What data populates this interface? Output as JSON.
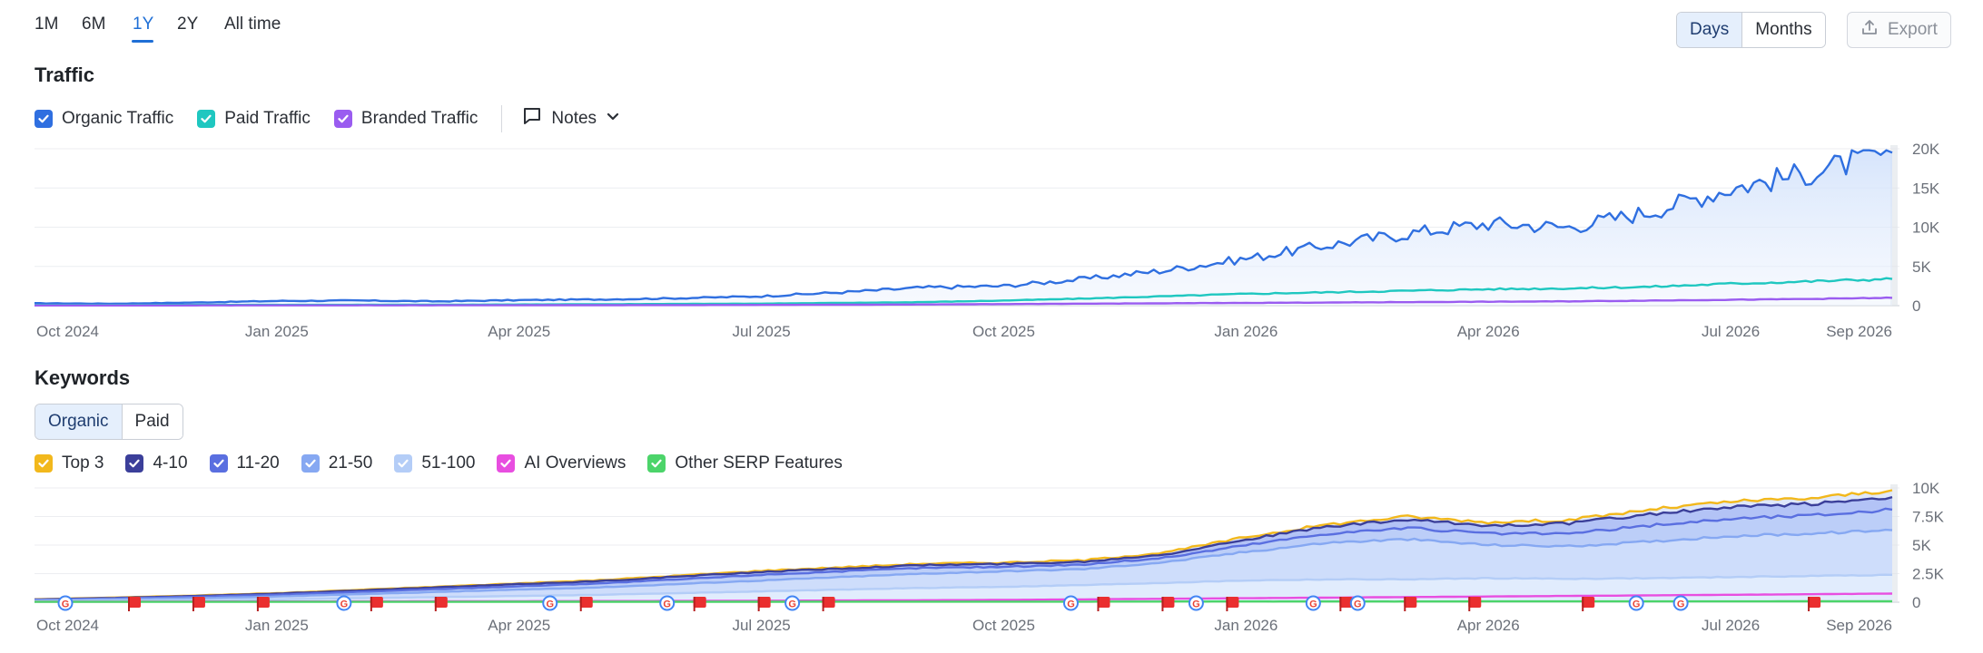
{
  "period_tabs": [
    {
      "label": "1M",
      "active": false
    },
    {
      "label": "6M",
      "active": false
    },
    {
      "label": "1Y",
      "active": true
    },
    {
      "label": "2Y",
      "active": false
    },
    {
      "label": "All time",
      "active": false
    }
  ],
  "granularity": {
    "days_label": "Days",
    "months_label": "Months",
    "selected": "Days"
  },
  "export": {
    "label": "Export",
    "icon": "upload-icon",
    "enabled": false
  },
  "traffic": {
    "title": "Traffic",
    "legend": [
      {
        "label": "Organic Traffic",
        "color": "#2f6fe0",
        "checked": true
      },
      {
        "label": "Paid Traffic",
        "color": "#1fc7c0",
        "checked": true
      },
      {
        "label": "Branded Traffic",
        "color": "#9a5cf0",
        "checked": true
      }
    ],
    "notes_label": "Notes",
    "notes_icon": "comment-icon"
  },
  "keywords": {
    "title": "Keywords",
    "tabs": [
      {
        "label": "Organic",
        "active": true
      },
      {
        "label": "Paid",
        "active": false
      }
    ],
    "legend": [
      {
        "label": "Top 3",
        "color": "#f2b81c"
      },
      {
        "label": "4-10",
        "color": "#3b3f9a"
      },
      {
        "label": "11-20",
        "color": "#5a6fe0"
      },
      {
        "label": "21-50",
        "color": "#86a8f2"
      },
      {
        "label": "51-100",
        "color": "#b4cdf7"
      },
      {
        "label": "AI Overviews",
        "color": "#e84ee0"
      },
      {
        "label": "Other SERP Features",
        "color": "#4cd46a"
      }
    ]
  },
  "chart_data": [
    {
      "type": "line",
      "title": "Traffic",
      "x": [
        "Oct 2024",
        "Nov 2024",
        "Dec 2024",
        "Jan 2025",
        "Feb 2025",
        "Mar 2025",
        "Apr 2025",
        "May 2025",
        "Jun 2025",
        "Jul 2025",
        "Aug 2025",
        "Sep 2025",
        "Oct 2025",
        "Nov 2025",
        "Dec 2025",
        "Jan 2026",
        "Feb 2026",
        "Mar 2026",
        "Apr 2026",
        "May 2026",
        "Jun 2026",
        "Jul 2026",
        "Aug 2026",
        "Sep 2026"
      ],
      "x_tick_labels": [
        "Oct 2024",
        "Jan 2025",
        "Apr 2025",
        "Jul 2025",
        "Oct 2025",
        "Jan 2026",
        "Apr 2026",
        "Jul 2026",
        "Sep 2026"
      ],
      "y_tick_labels": [
        "20K",
        "15K",
        "10K",
        "5K",
        "0"
      ],
      "ylim": [
        0,
        20000
      ],
      "series": [
        {
          "name": "Organic Traffic",
          "color": "#2f6fe0",
          "values": [
            300,
            250,
            400,
            600,
            650,
            550,
            700,
            800,
            950,
            1200,
            1700,
            2300,
            2500,
            3400,
            4500,
            6000,
            7700,
            9200,
            10500,
            10000,
            12000,
            15000,
            17000,
            19500
          ]
        },
        {
          "name": "Paid Traffic",
          "color": "#1fc7c0",
          "values": [
            80,
            80,
            100,
            100,
            110,
            120,
            150,
            180,
            220,
            260,
            350,
            450,
            650,
            900,
            1200,
            1500,
            1700,
            1900,
            2100,
            2200,
            2400,
            2800,
            3100,
            3400
          ]
        },
        {
          "name": "Branded Traffic",
          "color": "#9a5cf0",
          "values": [
            20,
            20,
            30,
            30,
            40,
            40,
            50,
            60,
            70,
            90,
            110,
            150,
            200,
            250,
            300,
            350,
            400,
            450,
            500,
            550,
            650,
            750,
            850,
            1000
          ]
        }
      ]
    },
    {
      "type": "area",
      "title": "Keywords",
      "x": [
        "Oct 2024",
        "Nov 2024",
        "Dec 2024",
        "Jan 2025",
        "Feb 2025",
        "Mar 2025",
        "Apr 2025",
        "May 2025",
        "Jun 2025",
        "Jul 2025",
        "Aug 2025",
        "Sep 2025",
        "Oct 2025",
        "Nov 2025",
        "Dec 2025",
        "Jan 2026",
        "Feb 2026",
        "Mar 2026",
        "Apr 2026",
        "May 2026",
        "Jun 2026",
        "Jul 2026",
        "Aug 2026",
        "Sep 2026"
      ],
      "x_tick_labels": [
        "Oct 2024",
        "Jan 2025",
        "Apr 2025",
        "Jul 2025",
        "Oct 2025",
        "Jan 2026",
        "Apr 2026",
        "Jul 2026",
        "Sep 2026"
      ],
      "y_tick_labels": [
        "10K",
        "7.5K",
        "5K",
        "2.5K",
        "0"
      ],
      "ylim": [
        0,
        10000
      ],
      "series": [
        {
          "name": "51-100",
          "color": "#b4cdf7",
          "values": [
            80,
            120,
            180,
            250,
            350,
            450,
            550,
            650,
            800,
            950,
            1100,
            1250,
            1350,
            1500,
            1700,
            1900,
            2000,
            2000,
            2100,
            2050,
            2100,
            2200,
            2300,
            2400
          ]
        },
        {
          "name": "21-50",
          "color": "#86a8f2",
          "values": [
            150,
            250,
            350,
            500,
            700,
            900,
            1100,
            1300,
            1600,
            1900,
            2200,
            2500,
            2700,
            2900,
            3500,
            4400,
            5200,
            5500,
            5000,
            4900,
            5300,
            5800,
            6000,
            6300
          ]
        },
        {
          "name": "11-20",
          "color": "#5a6fe0",
          "values": [
            200,
            330,
            480,
            650,
            900,
            1150,
            1400,
            1650,
            2000,
            2400,
            2700,
            3000,
            3100,
            3300,
            3900,
            5000,
            6000,
            6500,
            6000,
            6000,
            6700,
            7300,
            7600,
            8100
          ]
        },
        {
          "name": "4-10",
          "color": "#3b3f9a",
          "values": [
            240,
            380,
            550,
            750,
            1030,
            1300,
            1580,
            1850,
            2250,
            2650,
            2950,
            3250,
            3350,
            3550,
            4200,
            5500,
            6600,
            7200,
            6700,
            6900,
            7700,
            8300,
            8600,
            9200
          ]
        },
        {
          "name": "Top 3",
          "color": "#f2b81c",
          "values": [
            260,
            410,
            590,
            790,
            1080,
            1360,
            1650,
            1930,
            2340,
            2750,
            3060,
            3370,
            3470,
            3680,
            4350,
            5700,
            6800,
            7500,
            7000,
            7200,
            8100,
            8800,
            9100,
            9800
          ]
        },
        {
          "name": "AI Overviews",
          "color": "#e84ee0",
          "values": [
            50,
            50,
            60,
            60,
            70,
            80,
            90,
            100,
            110,
            130,
            150,
            170,
            200,
            250,
            300,
            350,
            400,
            450,
            500,
            550,
            600,
            650,
            700,
            750
          ]
        },
        {
          "name": "Other SERP Features",
          "color": "#4cd46a",
          "values": [
            30,
            30,
            30,
            30,
            30,
            30,
            40,
            40,
            40,
            40,
            50,
            50,
            50,
            50,
            60,
            60,
            60,
            60,
            70,
            70,
            70,
            70,
            80,
            80
          ]
        }
      ],
      "notes_markers": [
        "Oct 2024",
        "Nov 2024",
        "Dec 2024",
        "Jan 2025",
        "Feb 2025",
        "Apr 2025",
        "May 2025",
        "Jun 2025",
        "Jul 2025",
        "Oct 2025",
        "Nov 2025",
        "Dec 2025",
        "Jan 2026",
        "Feb 2026",
        "Mar 2026",
        "Apr 2026",
        "Jul 2026"
      ],
      "google_updates": [
        "Oct 2024",
        "Jan 2025",
        "Apr 2025",
        "May 2025",
        "Jul 2025",
        "Oct 2025",
        "Dec 2025",
        "Jan 2026",
        "Feb 2026",
        "May 2026",
        "Jun 2026"
      ]
    }
  ]
}
